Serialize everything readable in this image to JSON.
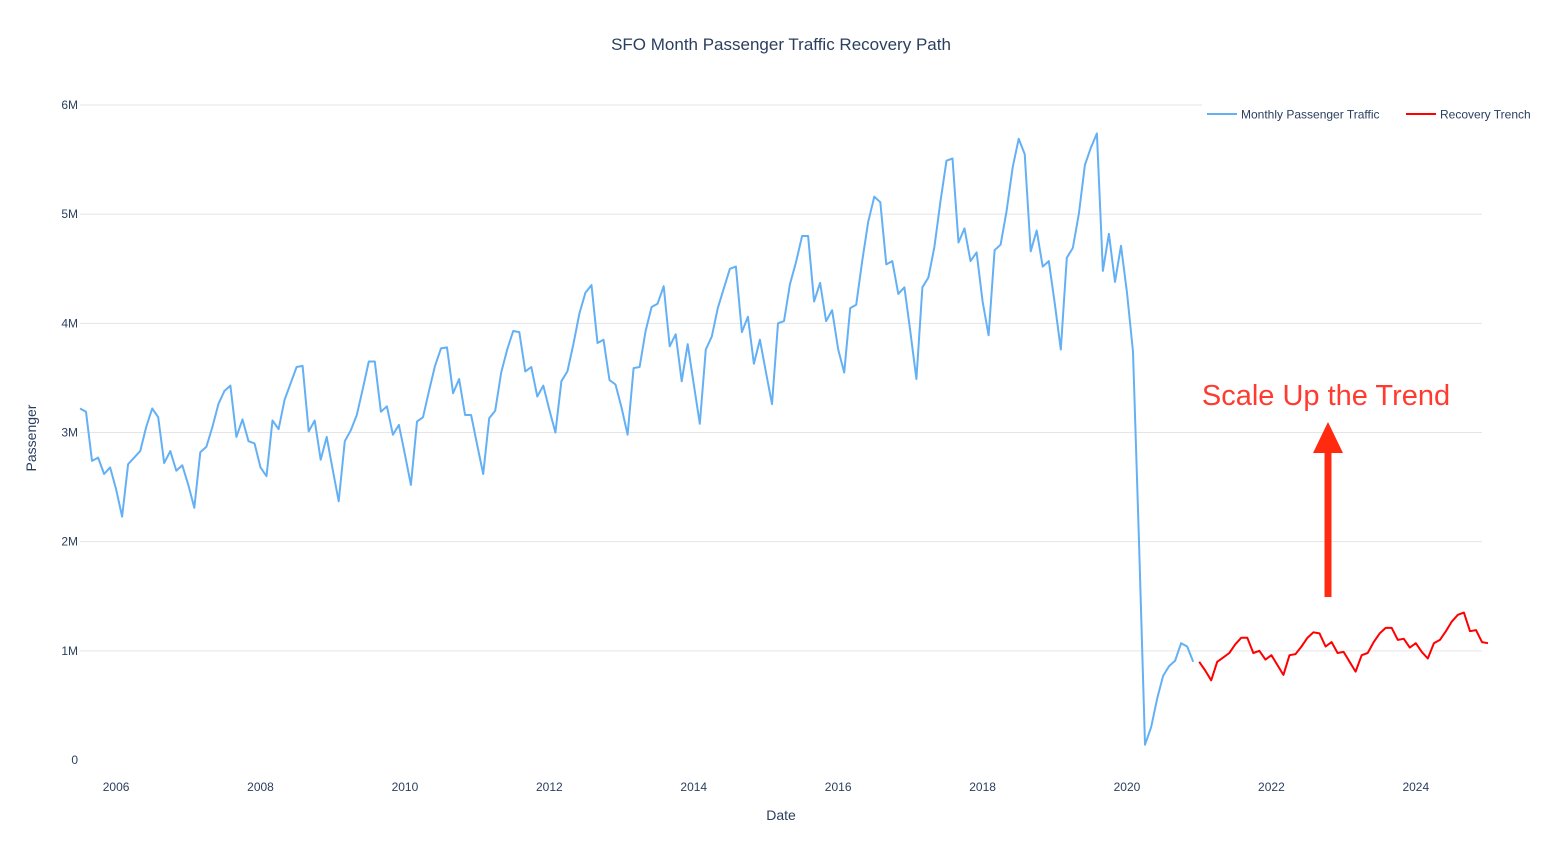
{
  "chart_data": {
    "type": "line",
    "title": "SFO Month Passenger Traffic Recovery Path",
    "xlabel": "Date",
    "ylabel": "Passenger",
    "x_ticks": [
      "2006",
      "2008",
      "2010",
      "2012",
      "2014",
      "2016",
      "2018",
      "2020",
      "2022",
      "2024"
    ],
    "y_ticks": [
      "0",
      "1M",
      "2M",
      "3M",
      "4M",
      "5M",
      "6M"
    ],
    "xlim": [
      "2005-07",
      "2024-12"
    ],
    "ylim": [
      0,
      6000000
    ],
    "grid": true,
    "legend_position": "top-right",
    "series": [
      {
        "name": "Monthly Passenger Traffic",
        "color": "#64b0f5",
        "start": "2005-07",
        "values": [
          3220000,
          3190000,
          2740000,
          2770000,
          2620000,
          2680000,
          2480000,
          2230000,
          2710000,
          2770000,
          2830000,
          3050000,
          3220000,
          3140000,
          2720000,
          2830000,
          2650000,
          2700000,
          2520000,
          2310000,
          2820000,
          2870000,
          3050000,
          3260000,
          3380000,
          3430000,
          2960000,
          3120000,
          2920000,
          2900000,
          2680000,
          2600000,
          3110000,
          3030000,
          3300000,
          3450000,
          3600000,
          3610000,
          3010000,
          3110000,
          2750000,
          2960000,
          2660000,
          2370000,
          2920000,
          3020000,
          3160000,
          3400000,
          3650000,
          3650000,
          3190000,
          3240000,
          2980000,
          3070000,
          2800000,
          2520000,
          3100000,
          3140000,
          3380000,
          3610000,
          3770000,
          3780000,
          3360000,
          3490000,
          3160000,
          3160000,
          2890000,
          2620000,
          3130000,
          3200000,
          3550000,
          3760000,
          3930000,
          3920000,
          3560000,
          3600000,
          3330000,
          3430000,
          3210000,
          3000000,
          3470000,
          3560000,
          3810000,
          4090000,
          4280000,
          4350000,
          3820000,
          3850000,
          3480000,
          3440000,
          3230000,
          2980000,
          3590000,
          3600000,
          3930000,
          4150000,
          4180000,
          4340000,
          3790000,
          3900000,
          3470000,
          3810000,
          3440000,
          3080000,
          3760000,
          3880000,
          4140000,
          4320000,
          4500000,
          4520000,
          3920000,
          4060000,
          3630000,
          3850000,
          3550000,
          3260000,
          4000000,
          4020000,
          4360000,
          4560000,
          4800000,
          4800000,
          4200000,
          4370000,
          4020000,
          4120000,
          3760000,
          3550000,
          4140000,
          4170000,
          4570000,
          4930000,
          5160000,
          5110000,
          4540000,
          4570000,
          4270000,
          4330000,
          3920000,
          3490000,
          4330000,
          4420000,
          4700000,
          5120000,
          5490000,
          5510000,
          4740000,
          4870000,
          4570000,
          4650000,
          4200000,
          3890000,
          4670000,
          4720000,
          5030000,
          5430000,
          5690000,
          5550000,
          4660000,
          4850000,
          4520000,
          4570000,
          4180000,
          3760000,
          4600000,
          4690000,
          5000000,
          5450000,
          5610000,
          5740000,
          4480000,
          4820000,
          4380000,
          4710000,
          4280000,
          3740000,
          2000000,
          140000,
          300000,
          560000,
          770000,
          860000,
          910000,
          1070000,
          1040000,
          900000
        ]
      },
      {
        "name": "Recovery Trench",
        "color": "#ff0000",
        "start": "2021-01",
        "values": [
          900000,
          820000,
          730000,
          900000,
          940000,
          980000,
          1060000,
          1120000,
          1120000,
          980000,
          1000000,
          920000,
          960000,
          870000,
          780000,
          960000,
          970000,
          1040000,
          1120000,
          1170000,
          1160000,
          1040000,
          1080000,
          980000,
          990000,
          900000,
          810000,
          960000,
          980000,
          1080000,
          1160000,
          1210000,
          1210000,
          1100000,
          1110000,
          1030000,
          1070000,
          990000,
          930000,
          1070000,
          1100000,
          1180000,
          1270000,
          1330000,
          1350000,
          1180000,
          1190000,
          1080000,
          1070000
        ]
      }
    ],
    "annotations": [
      {
        "text": "Scale Up the Trend",
        "color": "#ff3b2f"
      }
    ]
  }
}
